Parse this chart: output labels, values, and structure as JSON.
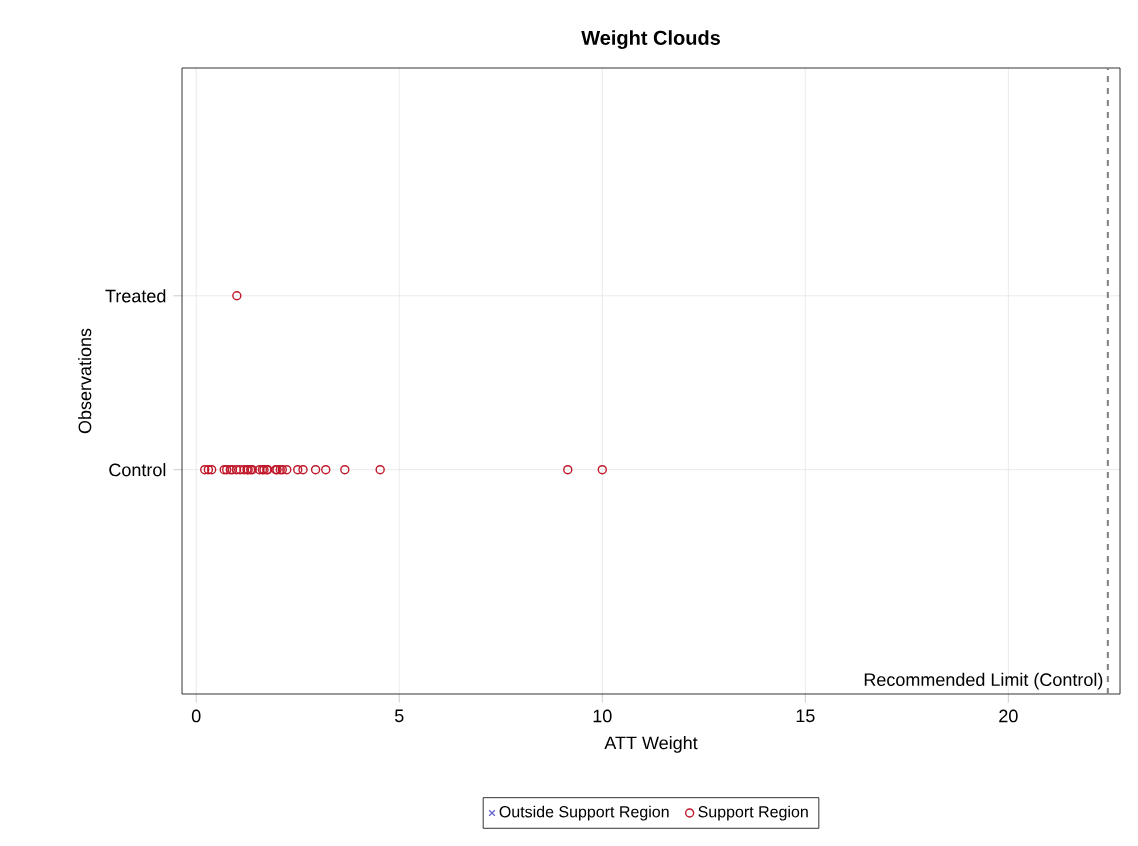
{
  "chart_data": {
    "type": "scatter",
    "orientation": "horizontal",
    "title": "Weight Clouds",
    "xlabel": "ATT Weight",
    "ylabel": "Observations",
    "categories": [
      "Treated",
      "Control"
    ],
    "xlim": [
      -0.35,
      22.75
    ],
    "xticks": [
      0,
      5,
      10,
      15,
      20
    ],
    "grid": true,
    "legend": "bottom",
    "ref_lines": [
      {
        "axis": "x",
        "value": 22.45,
        "label": "Recommended Limit (Control)",
        "color": "#808080",
        "line_style": "dashed"
      }
    ],
    "series": [
      {
        "name": "Outside Support Region",
        "color": "#6666cc",
        "marker": "cross",
        "values": [
          null,
          null
        ]
      },
      {
        "name": "Support Region",
        "color": "#c0182a",
        "marker": "circle",
        "x": [
          "Control",
          "Control",
          "Control",
          "Control",
          "Control",
          "Control",
          "Control",
          "Control",
          "Control",
          "Control",
          "Control",
          "Control",
          "Control",
          "Control",
          "Control",
          "Control",
          "Control",
          "Control",
          "Control",
          "Control",
          "Control",
          "Control",
          "Control",
          "Control",
          "Control",
          "Control",
          "Control",
          "Control",
          "Control",
          "Control",
          "Control",
          "Control",
          "Treated"
        ],
        "values": [
          0.21,
          0.38,
          0.69,
          0.75,
          0.84,
          0.89,
          0.99,
          1.08,
          1.18,
          1.25,
          1.34,
          1.38,
          1.56,
          1.63,
          1.67,
          1.74,
          1.76,
          1.96,
          1.99,
          2.07,
          2.12,
          2.23,
          2.5,
          2.63,
          2.94,
          3.19,
          3.66,
          4.53,
          9.15,
          10.0,
          1.28,
          0.3,
          1
        ]
      }
    ]
  }
}
